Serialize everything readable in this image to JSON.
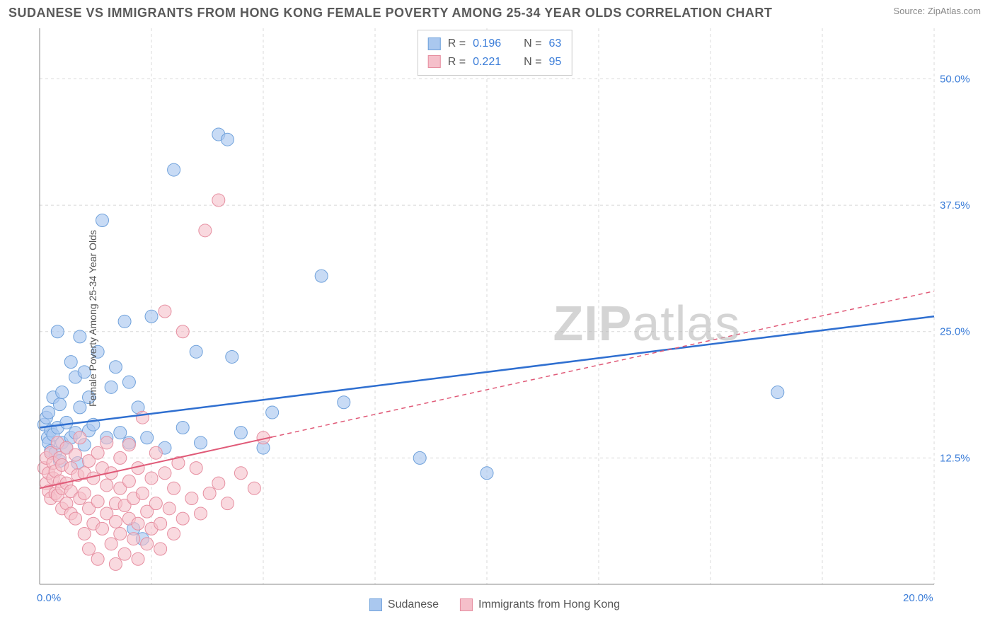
{
  "header": {
    "title": "SUDANESE VS IMMIGRANTS FROM HONG KONG FEMALE POVERTY AMONG 25-34 YEAR OLDS CORRELATION CHART",
    "source_label": "Source:",
    "source_name": "ZipAtlas.com"
  },
  "chart": {
    "type": "scatter",
    "ylabel": "Female Poverty Among 25-34 Year Olds",
    "watermark": "ZIPatlas",
    "xlim": [
      0,
      20
    ],
    "ylim": [
      0,
      55
    ],
    "xtick_min": {
      "val": 0,
      "label": "0.0%"
    },
    "xtick_max": {
      "val": 20,
      "label": "20.0%"
    },
    "yticks": [
      {
        "val": 12.5,
        "label": "12.5%"
      },
      {
        "val": 25.0,
        "label": "25.0%"
      },
      {
        "val": 37.5,
        "label": "37.5%"
      },
      {
        "val": 50.0,
        "label": "50.0%"
      }
    ],
    "xgrid": [
      2.5,
      5.0,
      7.5,
      10.0,
      12.5,
      15.0,
      17.5,
      20.0
    ],
    "grid_color": "#d8d8d8",
    "axis_color": "#888888",
    "background_color": "#ffffff",
    "tick_label_color": "#3b7dd8",
    "series": [
      {
        "key": "sudanese",
        "name": "Sudanese",
        "point_fill": "#aac8ef",
        "point_stroke": "#6fa1db",
        "point_opacity": 0.65,
        "point_radius": 9,
        "line_color": "#2f6fd0",
        "line_width": 2.5,
        "R": "0.196",
        "N": "63",
        "trend": {
          "x1": 0.0,
          "y1": 15.5,
          "x2": 20.0,
          "y2": 26.5,
          "solid_until_x": 20.0
        },
        "points": [
          [
            0.1,
            15.8
          ],
          [
            0.15,
            16.5
          ],
          [
            0.18,
            14.5
          ],
          [
            0.2,
            17.0
          ],
          [
            0.2,
            14.0
          ],
          [
            0.25,
            15.2
          ],
          [
            0.25,
            13.2
          ],
          [
            0.3,
            18.5
          ],
          [
            0.3,
            14.8
          ],
          [
            0.35,
            13.0
          ],
          [
            0.4,
            25.0
          ],
          [
            0.4,
            15.5
          ],
          [
            0.45,
            17.8
          ],
          [
            0.45,
            12.2
          ],
          [
            0.5,
            14.0
          ],
          [
            0.5,
            19.0
          ],
          [
            0.6,
            13.5
          ],
          [
            0.6,
            16.0
          ],
          [
            0.7,
            22.0
          ],
          [
            0.7,
            14.5
          ],
          [
            0.8,
            15.0
          ],
          [
            0.8,
            20.5
          ],
          [
            0.85,
            12.0
          ],
          [
            0.9,
            24.5
          ],
          [
            0.9,
            17.5
          ],
          [
            1.0,
            21.0
          ],
          [
            1.0,
            13.8
          ],
          [
            1.1,
            18.5
          ],
          [
            1.1,
            15.2
          ],
          [
            1.2,
            15.8
          ],
          [
            1.3,
            23.0
          ],
          [
            1.4,
            36.0
          ],
          [
            1.5,
            14.5
          ],
          [
            1.6,
            19.5
          ],
          [
            1.7,
            21.5
          ],
          [
            1.8,
            15.0
          ],
          [
            1.9,
            26.0
          ],
          [
            2.0,
            14.0
          ],
          [
            2.0,
            20.0
          ],
          [
            2.1,
            5.5
          ],
          [
            2.2,
            17.5
          ],
          [
            2.3,
            4.5
          ],
          [
            2.4,
            14.5
          ],
          [
            2.5,
            26.5
          ],
          [
            2.8,
            13.5
          ],
          [
            3.0,
            41.0
          ],
          [
            3.2,
            15.5
          ],
          [
            3.5,
            23.0
          ],
          [
            3.6,
            14.0
          ],
          [
            4.0,
            44.5
          ],
          [
            4.2,
            44.0
          ],
          [
            4.3,
            22.5
          ],
          [
            4.5,
            15.0
          ],
          [
            5.0,
            13.5
          ],
          [
            5.2,
            17.0
          ],
          [
            6.3,
            30.5
          ],
          [
            6.8,
            18.0
          ],
          [
            8.5,
            12.5
          ],
          [
            10.0,
            11.0
          ],
          [
            16.5,
            19.0
          ]
        ]
      },
      {
        "key": "hongkong",
        "name": "Immigrants from Hong Kong",
        "point_fill": "#f5bfca",
        "point_stroke": "#e68ea0",
        "point_opacity": 0.6,
        "point_radius": 9,
        "line_color": "#e05a78",
        "line_width": 2,
        "R": "0.221",
        "N": "95",
        "trend": {
          "x1": 0.0,
          "y1": 9.5,
          "x2": 20.0,
          "y2": 29.0,
          "solid_until_x": 5.2
        },
        "points": [
          [
            0.1,
            11.5
          ],
          [
            0.15,
            10.0
          ],
          [
            0.15,
            12.5
          ],
          [
            0.2,
            9.2
          ],
          [
            0.2,
            11.0
          ],
          [
            0.25,
            13.0
          ],
          [
            0.25,
            8.5
          ],
          [
            0.3,
            10.5
          ],
          [
            0.3,
            12.0
          ],
          [
            0.35,
            9.0
          ],
          [
            0.35,
            11.2
          ],
          [
            0.4,
            14.0
          ],
          [
            0.4,
            8.8
          ],
          [
            0.45,
            10.2
          ],
          [
            0.45,
            12.5
          ],
          [
            0.5,
            7.5
          ],
          [
            0.5,
            9.5
          ],
          [
            0.5,
            11.8
          ],
          [
            0.6,
            13.5
          ],
          [
            0.6,
            8.0
          ],
          [
            0.6,
            10.0
          ],
          [
            0.7,
            11.5
          ],
          [
            0.7,
            7.0
          ],
          [
            0.7,
            9.2
          ],
          [
            0.8,
            12.8
          ],
          [
            0.8,
            6.5
          ],
          [
            0.85,
            10.8
          ],
          [
            0.9,
            8.5
          ],
          [
            0.9,
            14.5
          ],
          [
            1.0,
            5.0
          ],
          [
            1.0,
            11.0
          ],
          [
            1.0,
            9.0
          ],
          [
            1.1,
            12.2
          ],
          [
            1.1,
            7.5
          ],
          [
            1.1,
            3.5
          ],
          [
            1.2,
            10.5
          ],
          [
            1.2,
            6.0
          ],
          [
            1.3,
            13.0
          ],
          [
            1.3,
            8.2
          ],
          [
            1.3,
            2.5
          ],
          [
            1.4,
            11.5
          ],
          [
            1.4,
            5.5
          ],
          [
            1.5,
            9.8
          ],
          [
            1.5,
            7.0
          ],
          [
            1.5,
            14.0
          ],
          [
            1.6,
            4.0
          ],
          [
            1.6,
            11.0
          ],
          [
            1.7,
            8.0
          ],
          [
            1.7,
            6.2
          ],
          [
            1.7,
            2.0
          ],
          [
            1.8,
            12.5
          ],
          [
            1.8,
            9.5
          ],
          [
            1.8,
            5.0
          ],
          [
            1.9,
            7.8
          ],
          [
            1.9,
            3.0
          ],
          [
            2.0,
            10.2
          ],
          [
            2.0,
            6.5
          ],
          [
            2.0,
            13.8
          ],
          [
            2.1,
            8.5
          ],
          [
            2.1,
            4.5
          ],
          [
            2.2,
            11.5
          ],
          [
            2.2,
            6.0
          ],
          [
            2.2,
            2.5
          ],
          [
            2.3,
            9.0
          ],
          [
            2.3,
            16.5
          ],
          [
            2.4,
            7.2
          ],
          [
            2.4,
            4.0
          ],
          [
            2.5,
            10.5
          ],
          [
            2.5,
            5.5
          ],
          [
            2.6,
            8.0
          ],
          [
            2.6,
            13.0
          ],
          [
            2.7,
            6.0
          ],
          [
            2.7,
            3.5
          ],
          [
            2.8,
            11.0
          ],
          [
            2.8,
            27.0
          ],
          [
            2.9,
            7.5
          ],
          [
            3.0,
            9.5
          ],
          [
            3.0,
            5.0
          ],
          [
            3.1,
            12.0
          ],
          [
            3.2,
            25.0
          ],
          [
            3.2,
            6.5
          ],
          [
            3.4,
            8.5
          ],
          [
            3.5,
            11.5
          ],
          [
            3.6,
            7.0
          ],
          [
            3.7,
            35.0
          ],
          [
            3.8,
            9.0
          ],
          [
            4.0,
            10.0
          ],
          [
            4.0,
            38.0
          ],
          [
            4.2,
            8.0
          ],
          [
            4.5,
            11.0
          ],
          [
            4.8,
            9.5
          ],
          [
            5.0,
            14.5
          ]
        ]
      }
    ],
    "legend_top": {
      "r_label": "R =",
      "n_label": "N ="
    },
    "legend_bottom": {
      "items": [
        "sudanese",
        "hongkong"
      ]
    }
  }
}
